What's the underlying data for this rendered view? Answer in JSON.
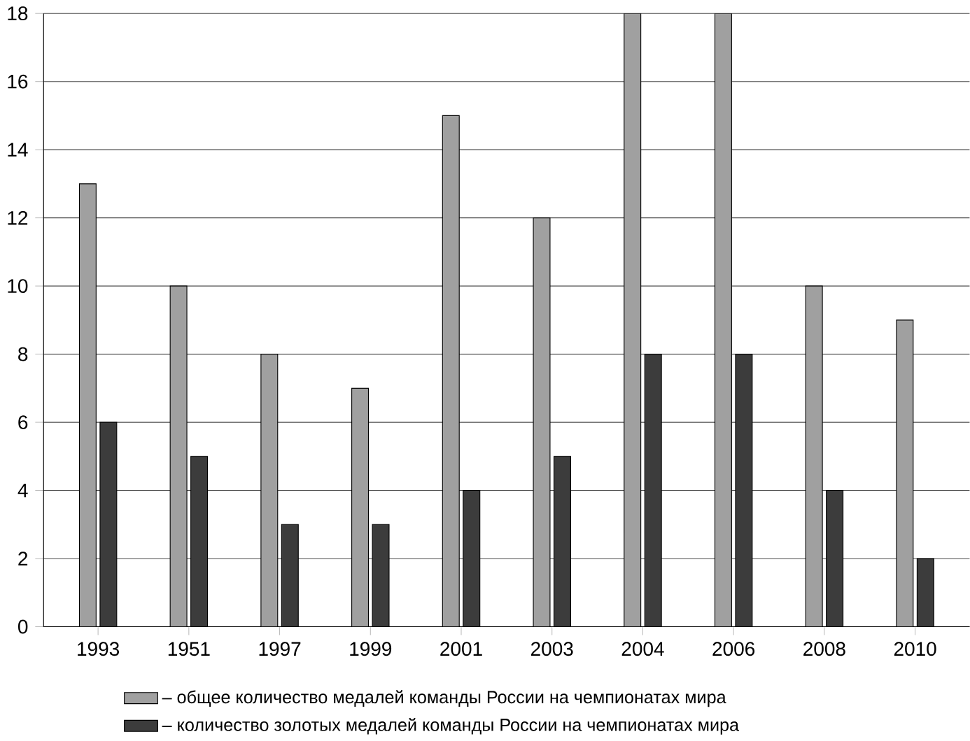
{
  "chart_data": {
    "type": "bar",
    "categories": [
      "1993",
      "1951",
      "1997",
      "1999",
      "2001",
      "2003",
      "2004",
      "2006",
      "2008",
      "2010"
    ],
    "series": [
      {
        "name": "– общее количество медалей команды России на чемпионатах мира",
        "color": "#a0a0a0",
        "values": [
          13,
          10,
          8,
          7,
          15,
          12,
          18,
          18,
          10,
          9
        ]
      },
      {
        "name": "– количество золотых медалей команды России на чемпионатах мира",
        "color": "#3c3c3c",
        "values": [
          6,
          5,
          3,
          3,
          4,
          5,
          8,
          8,
          4,
          2
        ]
      }
    ],
    "ylim": [
      0,
      18
    ],
    "yticks": [
      0,
      2,
      4,
      6,
      8,
      10,
      12,
      14,
      16,
      18
    ],
    "grid": "y",
    "legend": "bottom"
  }
}
